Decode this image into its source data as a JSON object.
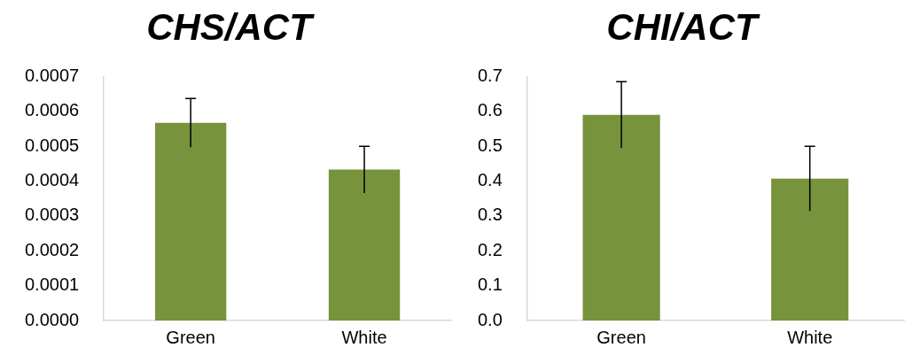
{
  "chart_data": [
    {
      "type": "bar",
      "title": "CHS/ACT",
      "categories": [
        "Green",
        "White"
      ],
      "values": [
        0.000567,
        0.000433
      ],
      "errors": [
        7e-05,
        6.7e-05
      ],
      "color": "#77933c",
      "ylim": [
        0,
        0.0007
      ],
      "yticks": [
        {
          "value": 0,
          "label": "0.0000"
        },
        {
          "value": 0.0001,
          "label": "0.0001"
        },
        {
          "value": 0.0002,
          "label": "0.0002"
        },
        {
          "value": 0.0003,
          "label": "0.0003"
        },
        {
          "value": 0.0004,
          "label": "0.0004"
        },
        {
          "value": 0.0005,
          "label": "0.0005"
        },
        {
          "value": 0.0006,
          "label": "0.0006"
        },
        {
          "value": 0.0007,
          "label": "0.0007"
        }
      ],
      "grid": false,
      "legend": false
    },
    {
      "type": "bar",
      "title": "CHI/ACT",
      "categories": [
        "Green",
        "White"
      ],
      "values": [
        0.59,
        0.407
      ],
      "errors": [
        0.095,
        0.093
      ],
      "color": "#77933c",
      "ylim": [
        0,
        0.7
      ],
      "yticks": [
        {
          "value": 0,
          "label": "0.0"
        },
        {
          "value": 0.1,
          "label": "0.1"
        },
        {
          "value": 0.2,
          "label": "0.2"
        },
        {
          "value": 0.3,
          "label": "0.3"
        },
        {
          "value": 0.4,
          "label": "0.4"
        },
        {
          "value": 0.5,
          "label": "0.5"
        },
        {
          "value": 0.6,
          "label": "0.6"
        },
        {
          "value": 0.7,
          "label": "0.7"
        }
      ],
      "grid": false,
      "legend": false
    }
  ]
}
